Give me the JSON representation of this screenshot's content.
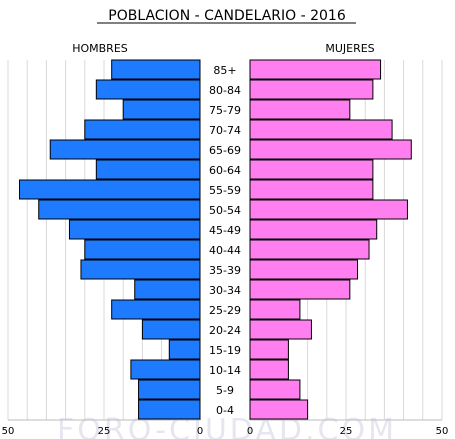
{
  "chart_data": {
    "type": "bar",
    "orientation": "population-pyramid",
    "title": "POBLACION - CANDELARIO - 2016",
    "left_label": "HOMBRES",
    "right_label": "MUJERES",
    "watermark": "FORO-CIUDAD.COM",
    "categories": [
      "85+",
      "80-84",
      "75-79",
      "70-74",
      "65-69",
      "60-64",
      "55-59",
      "50-54",
      "45-49",
      "40-44",
      "35-39",
      "30-34",
      "25-29",
      "20-24",
      "15-19",
      "10-14",
      "5-9",
      "0-4"
    ],
    "series": [
      {
        "name": "HOMBRES",
        "values": [
          23,
          27,
          20,
          30,
          39,
          27,
          47,
          42,
          34,
          30,
          31,
          17,
          23,
          15,
          8,
          18,
          16,
          16
        ]
      },
      {
        "name": "MUJERES",
        "values": [
          34,
          32,
          26,
          37,
          42,
          32,
          32,
          41,
          33,
          31,
          28,
          26,
          13,
          16,
          10,
          10,
          13,
          15
        ]
      }
    ],
    "xlim": [
      0,
      50
    ],
    "xticks_left": [
      "50",
      "25",
      "0"
    ],
    "xticks_right": [
      "0",
      "25",
      "50"
    ],
    "colors": {
      "male": "#1e7bff",
      "female": "#ff7ff0",
      "grid": "#d9d9d9",
      "axis": "#000000"
    },
    "grid": true
  }
}
